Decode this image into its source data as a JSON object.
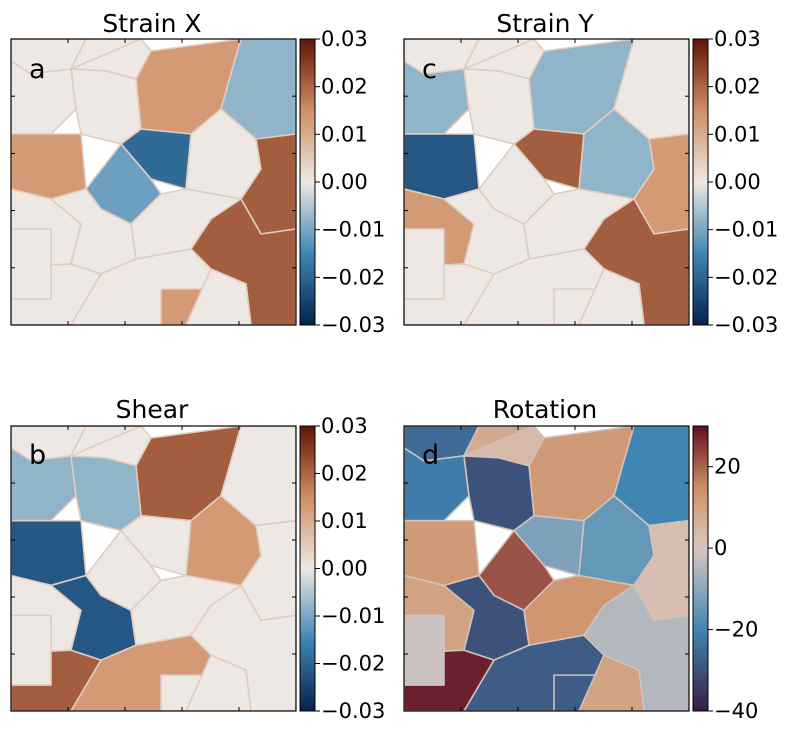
{
  "chart_data": [
    {
      "type": "heatmap",
      "title": "Strain X",
      "panel_label": "a",
      "colormap": "diverging (blue-white-orange)",
      "clim": [
        -0.03,
        0.03
      ],
      "colorbar_ticks": [
        0.03,
        0.02,
        0.01,
        0.0,
        -0.01,
        -0.02,
        -0.03
      ],
      "colorbar_tick_labels": [
        "0.03",
        "0.02",
        "0.01",
        "0.00",
        "−0.01",
        "−0.02",
        "−0.03"
      ],
      "grain_values": [
        0.0,
        0.0,
        0.0,
        0.013,
        -0.008,
        0.0,
        0.0,
        -0.019,
        -0.011,
        0.0,
        0.021,
        0.013,
        0.0,
        0.0,
        0.0,
        0.021,
        0.0,
        0.0,
        0.0,
        0.013,
        0.0
      ]
    },
    {
      "type": "heatmap",
      "title": "Strain Y",
      "panel_label": "c",
      "colormap": "diverging (blue-white-orange)",
      "clim": [
        -0.03,
        0.03
      ],
      "colorbar_ticks": [
        0.03,
        0.02,
        0.01,
        0.0,
        -0.01,
        -0.02,
        -0.03
      ],
      "colorbar_tick_labels": [
        "0.03",
        "0.02",
        "0.01",
        "0.00",
        "−0.01",
        "−0.02",
        "−0.03"
      ],
      "grain_values": [
        0.0,
        0.0,
        0.0,
        -0.008,
        0.0,
        -0.008,
        0.0,
        0.021,
        0.0,
        -0.008,
        0.013,
        -0.022,
        0.013,
        0.0,
        0.0,
        0.021,
        0.0,
        0.0,
        0.0,
        0.0,
        0.0
      ]
    },
    {
      "type": "heatmap",
      "title": "Shear",
      "panel_label": "b",
      "colormap": "diverging (blue-white-orange)",
      "clim": [
        -0.03,
        0.03
      ],
      "colorbar_ticks": [
        0.03,
        0.02,
        0.01,
        0.0,
        -0.01,
        -0.02,
        -0.03
      ],
      "colorbar_tick_labels": [
        "0.03",
        "0.02",
        "0.01",
        "0.00",
        "−0.01",
        "−0.02",
        "−0.03"
      ],
      "grain_values": [
        0.0,
        0.0,
        0.0,
        0.021,
        0.0,
        -0.008,
        -0.008,
        0.0,
        0.0,
        0.013,
        0.0,
        -0.022,
        0.0,
        -0.022,
        0.0,
        0.0,
        0.021,
        0.013,
        0.0,
        0.0,
        0.0
      ]
    },
    {
      "type": "heatmap",
      "title": "Rotation",
      "panel_label": "d",
      "colormap": "diverging (navy-white-maroon)",
      "clim": [
        -40,
        30
      ],
      "colorbar_ticks": [
        20,
        0,
        -20,
        -40
      ],
      "colorbar_tick_labels": [
        "20",
        "0",
        "−20",
        "−40"
      ],
      "grain_values": [
        -25,
        8,
        4,
        12,
        -20,
        -22,
        -30,
        -12,
        22,
        -15,
        3,
        12,
        10,
        -30,
        13,
        -5,
        28,
        -28,
        -2,
        -28,
        10
      ]
    }
  ],
  "colors": {
    "neg_end": "#07224e",
    "neg_mid": "#3f86b3",
    "center": "#ede8e3",
    "pos_mid": "#cf8e64",
    "pos_end": "#5e1606",
    "rot_low": "#3a1c43",
    "rot_mid": "#d8c9c2",
    "rot_high": "#5d0f24"
  }
}
